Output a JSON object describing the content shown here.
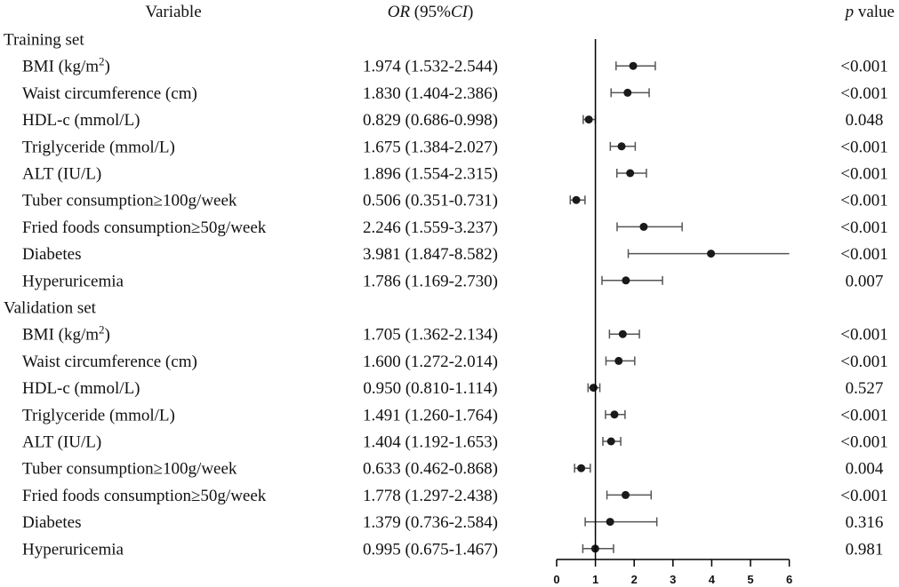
{
  "header": {
    "variable": "Variable",
    "or_italic": "OR",
    "or_rest": " (95%",
    "ci_italic": "CI",
    "ci_close": ")",
    "p_italic": "p",
    "p_rest": " value"
  },
  "groups": [
    {
      "label": "Training set",
      "rows": [
        {
          "variable": "BMI (kg/m",
          "superscript": "2",
          "suffix": ")",
          "or_text": "1.974 (1.532-2.544)",
          "p": "<0.001"
        },
        {
          "variable": "Waist circumference (cm)",
          "or_text": "1.830 (1.404-2.386)",
          "p": "<0.001"
        },
        {
          "variable": "HDL-c (mmol/L)",
          "or_text": "0.829 (0.686-0.998)",
          "p": "0.048"
        },
        {
          "variable": "Triglyceride (mmol/L)",
          "or_text": "1.675 (1.384-2.027)",
          "p": "<0.001"
        },
        {
          "variable": "ALT (IU/L)",
          "or_text": "1.896 (1.554-2.315)",
          "p": "<0.001"
        },
        {
          "variable": "Tuber consumption≥100g/week",
          "or_text": "0.506 (0.351-0.731)",
          "p": "<0.001"
        },
        {
          "variable": "Fried foods consumption≥50g/week",
          "or_text": "2.246 (1.559-3.237)",
          "p": "<0.001"
        },
        {
          "variable": "Diabetes",
          "or_text": "3.981 (1.847-8.582)",
          "p": "<0.001"
        },
        {
          "variable": "Hyperuricemia",
          "or_text": "1.786 (1.169-2.730)",
          "p": "0.007"
        }
      ]
    },
    {
      "label": "Validation set",
      "rows": [
        {
          "variable": "BMI (kg/m",
          "superscript": "2",
          "suffix": ")",
          "or_text": "1.705 (1.362-2.134)",
          "p": "<0.001"
        },
        {
          "variable": "Waist circumference (cm)",
          "or_text": "1.600 (1.272-2.014)",
          "p": "<0.001"
        },
        {
          "variable": "HDL-c (mmol/L)",
          "or_text": "0.950 (0.810-1.114)",
          "p": "0.527"
        },
        {
          "variable": "Triglyceride (mmol/L)",
          "or_text": "1.491 (1.260-1.764)",
          "p": "<0.001"
        },
        {
          "variable": "ALT (IU/L)",
          "or_text": "1.404 (1.192-1.653)",
          "p": "<0.001"
        },
        {
          "variable": "Tuber consumption≥100g/week",
          "or_text": "0.633 (0.462-0.868)",
          "p": "0.004"
        },
        {
          "variable": "Fried foods consumption≥50g/week",
          "or_text": "1.778 (1.297-2.438)",
          "p": "<0.001"
        },
        {
          "variable": "Diabetes",
          "or_text": "1.379 (0.736-2.584)",
          "p": "0.316"
        },
        {
          "variable": "Hyperuricemia",
          "or_text": "0.995 (0.675-1.467)",
          "p": "0.981"
        }
      ]
    }
  ],
  "chart_data": {
    "type": "scatter",
    "subtype": "forest",
    "title": "",
    "xlabel": "",
    "ylabel": "",
    "xlim": [
      0,
      6
    ],
    "x_ticks": [
      0,
      1,
      2,
      3,
      4,
      5,
      6
    ],
    "reference_line": 1,
    "clip_max": 6,
    "grid": false,
    "legend": "none",
    "colors": {
      "point": "#1a1a1a",
      "ci": "#555555",
      "axis": "#000000"
    },
    "series": [
      {
        "name": "Training set",
        "points": [
          {
            "label": "BMI (kg/m2)",
            "or": 1.974,
            "lo": 1.532,
            "hi": 2.544
          },
          {
            "label": "Waist circumference (cm)",
            "or": 1.83,
            "lo": 1.404,
            "hi": 2.386
          },
          {
            "label": "HDL-c (mmol/L)",
            "or": 0.829,
            "lo": 0.686,
            "hi": 0.998
          },
          {
            "label": "Triglyceride (mmol/L)",
            "or": 1.675,
            "lo": 1.384,
            "hi": 2.027
          },
          {
            "label": "ALT (IU/L)",
            "or": 1.896,
            "lo": 1.554,
            "hi": 2.315
          },
          {
            "label": "Tuber consumption≥100g/week",
            "or": 0.506,
            "lo": 0.351,
            "hi": 0.731
          },
          {
            "label": "Fried foods consumption≥50g/week",
            "or": 2.246,
            "lo": 1.559,
            "hi": 3.237
          },
          {
            "label": "Diabetes",
            "or": 3.981,
            "lo": 1.847,
            "hi": 8.582
          },
          {
            "label": "Hyperuricemia",
            "or": 1.786,
            "lo": 1.169,
            "hi": 2.73
          }
        ]
      },
      {
        "name": "Validation set",
        "points": [
          {
            "label": "BMI (kg/m2)",
            "or": 1.705,
            "lo": 1.362,
            "hi": 2.134
          },
          {
            "label": "Waist circumference (cm)",
            "or": 1.6,
            "lo": 1.272,
            "hi": 2.014
          },
          {
            "label": "HDL-c (mmol/L)",
            "or": 0.95,
            "lo": 0.81,
            "hi": 1.114
          },
          {
            "label": "Triglyceride (mmol/L)",
            "or": 1.491,
            "lo": 1.26,
            "hi": 1.764
          },
          {
            "label": "ALT (IU/L)",
            "or": 1.404,
            "lo": 1.192,
            "hi": 1.653
          },
          {
            "label": "Tuber consumption≥100g/week",
            "or": 0.633,
            "lo": 0.462,
            "hi": 0.868
          },
          {
            "label": "Fried foods consumption≥50g/week",
            "or": 1.778,
            "lo": 1.297,
            "hi": 2.438
          },
          {
            "label": "Diabetes",
            "or": 1.379,
            "lo": 0.736,
            "hi": 2.584
          },
          {
            "label": "Hyperuricemia",
            "or": 0.995,
            "lo": 0.675,
            "hi": 1.467
          }
        ]
      }
    ]
  }
}
